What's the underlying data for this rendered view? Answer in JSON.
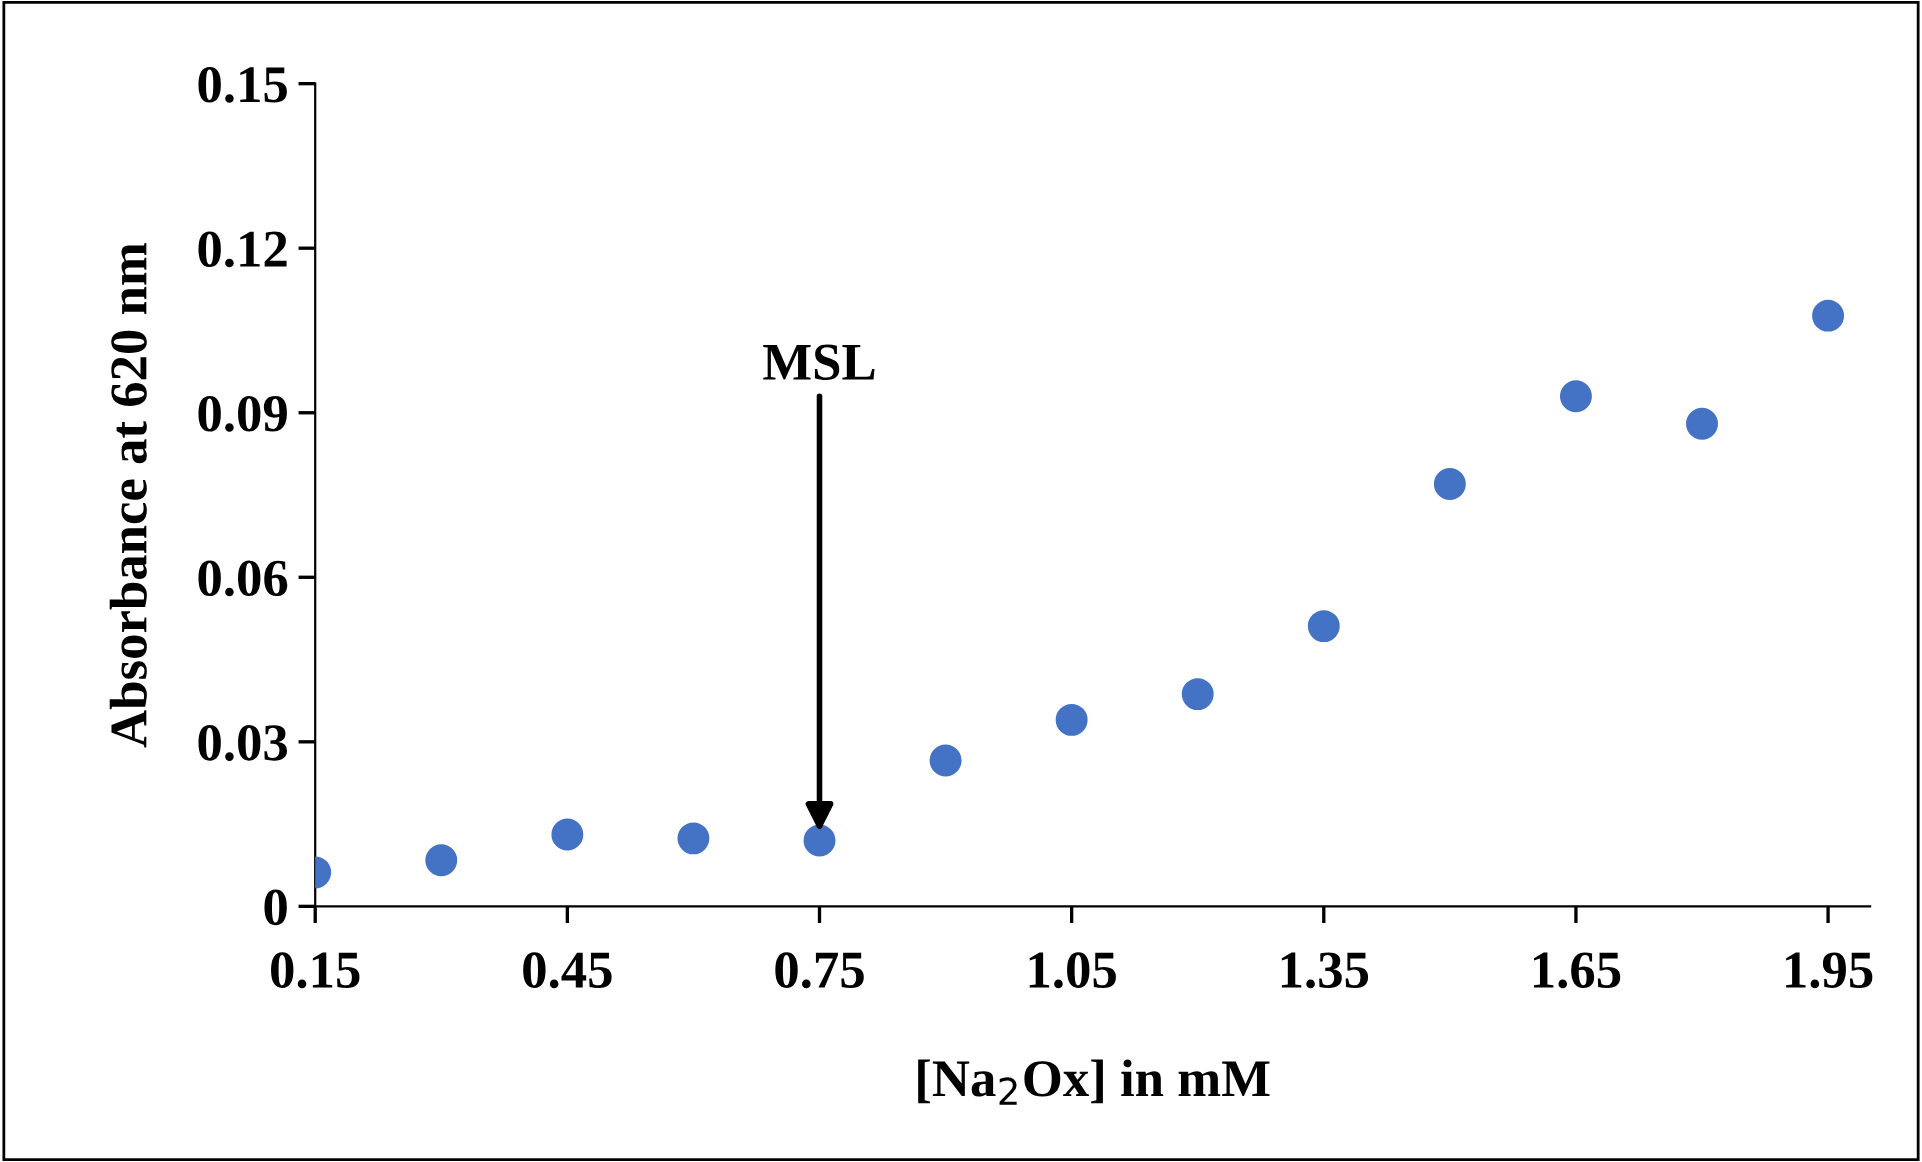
{
  "chart_data": {
    "type": "scatter",
    "xlabel": "[Na$_{2}$Ox] in mM",
    "ylabel": "Absorbance at 620 nm",
    "x": [
      0.15,
      0.3,
      0.45,
      0.6,
      0.75,
      0.9,
      1.05,
      1.2,
      1.35,
      1.5,
      1.65,
      1.8,
      1.95
    ],
    "series": [
      {
        "color": "#4472c4",
        "values": [
          0.0062,
          0.0084,
          0.0131,
          0.0124,
          0.012,
          0.0266,
          0.034,
          0.0387,
          0.0511,
          0.077,
          0.093,
          0.088,
          0.1077
        ]
      }
    ],
    "xlim": [
      0.15,
      2.0
    ],
    "ylim": [
      0,
      0.15
    ],
    "xticks": [
      {
        "value": 0.15,
        "label": "0.15"
      },
      {
        "value": 0.45,
        "label": "0.45"
      },
      {
        "value": 0.75,
        "label": "0.75"
      },
      {
        "value": 1.05,
        "label": "1.05"
      },
      {
        "value": 1.35,
        "label": "1.35"
      },
      {
        "value": 1.65,
        "label": "1.65"
      },
      {
        "value": 1.95,
        "label": "1.95"
      }
    ],
    "yticks": [
      0,
      {
        "value": 0.03,
        "label": "0.03"
      },
      {
        "value": 0.06,
        "label": "0.06"
      },
      {
        "value": 0.09,
        "label": "0.09"
      },
      {
        "value": 0.12,
        "label": "0.12"
      },
      {
        "value": 0.15,
        "label": "0.15"
      }
    ],
    "annotations": [
      {
        "text": "MSL",
        "x": 0.75,
        "y": 0.012
      }
    ],
    "marker": "circle",
    "grid": false,
    "legend": false
  }
}
